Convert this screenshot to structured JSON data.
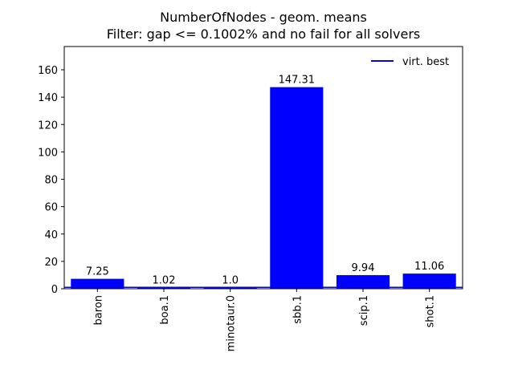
{
  "chart_data": {
    "type": "bar",
    "title": "NumberOfNodes - geom. means",
    "subtitle": "Filter: gap <= 0.1002% and no fail for all solvers",
    "xlabel": "",
    "ylabel": "",
    "categories": [
      "baron",
      "boa.1",
      "minotaur.0",
      "sbb.1",
      "scip.1",
      "shot.1"
    ],
    "values": [
      7.25,
      1.02,
      1.0,
      147.31,
      9.94,
      11.06
    ],
    "value_labels": [
      "7.25",
      "1.02",
      "1.0",
      "147.31",
      "9.94",
      "11.06"
    ],
    "ylim": [
      0,
      177
    ],
    "yticks": [
      0,
      20,
      40,
      60,
      80,
      100,
      120,
      140,
      160
    ],
    "reference_line": {
      "name": "virt. best",
      "value": 1.0
    },
    "legend": {
      "entries": [
        "virt. best"
      ],
      "placement": "top-right"
    },
    "bar_color": "#0000ff",
    "line_color": "#0000ff",
    "grid": false
  }
}
